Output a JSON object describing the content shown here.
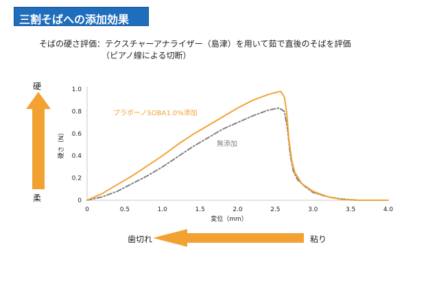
{
  "banner": {
    "title": "三割そばへの添加効果"
  },
  "description": {
    "line1": "そばの硬さ評価：テクスチャーアナライザー（島津）を用いて茹で直後のそばを評価",
    "line2": "（ピアノ線による切断）"
  },
  "side_labels": {
    "top": "硬",
    "bottom": "柔"
  },
  "bottom_labels": {
    "left": "歯切れ",
    "right": "粘り"
  },
  "colors": {
    "accent": "#f2a232",
    "secondary": "#808080",
    "banner": "#1f6dbd"
  },
  "chart_data": {
    "type": "line",
    "title": "",
    "xlabel": "変位（mm）",
    "ylabel": "硬さ（N）",
    "xlim": [
      0,
      4.0
    ],
    "ylim": [
      0,
      1.0
    ],
    "xticks": [
      "0",
      "0.5",
      "1.0",
      "1.5",
      "2.0",
      "2.5",
      "3.0",
      "3.5",
      "4.0"
    ],
    "yticks": [
      "0",
      "0.2",
      "0.4",
      "0.6",
      "0.8",
      "1.0"
    ],
    "grid": false,
    "series": [
      {
        "name": "プラボーノSOBA1.0%添加",
        "color": "#f2a232",
        "style": "solid",
        "x": [
          0,
          0.2,
          0.4,
          0.6,
          0.8,
          1.0,
          1.2,
          1.4,
          1.6,
          1.8,
          2.0,
          2.2,
          2.4,
          2.5,
          2.57,
          2.62,
          2.65,
          2.68,
          2.72,
          2.76,
          2.85,
          3.0,
          3.2,
          3.4,
          3.6,
          4.0
        ],
        "y": [
          0,
          0.06,
          0.14,
          0.22,
          0.31,
          0.4,
          0.5,
          0.59,
          0.67,
          0.75,
          0.83,
          0.9,
          0.95,
          0.97,
          0.98,
          0.93,
          0.8,
          0.55,
          0.35,
          0.25,
          0.15,
          0.08,
          0.03,
          0.005,
          0,
          0
        ]
      },
      {
        "name": "無添加",
        "color": "#808080",
        "style": "dashdot",
        "x": [
          0,
          0.2,
          0.4,
          0.6,
          0.8,
          1.0,
          1.2,
          1.4,
          1.6,
          1.8,
          2.0,
          2.2,
          2.4,
          2.55,
          2.62,
          2.66,
          2.7,
          2.74,
          2.8,
          2.9,
          3.0,
          3.2,
          3.4,
          3.6,
          4.0
        ],
        "y": [
          0,
          0.03,
          0.08,
          0.15,
          0.22,
          0.3,
          0.39,
          0.48,
          0.56,
          0.64,
          0.7,
          0.76,
          0.81,
          0.83,
          0.8,
          0.65,
          0.4,
          0.26,
          0.18,
          0.12,
          0.07,
          0.03,
          0.01,
          0,
          0
        ]
      }
    ]
  }
}
